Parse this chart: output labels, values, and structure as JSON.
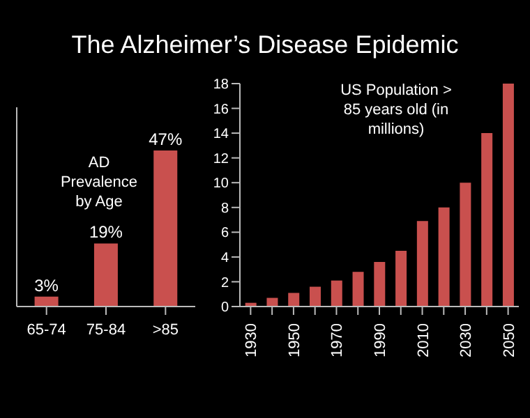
{
  "chart_data": [
    {
      "type": "bar",
      "title": "The Alzheimer’s Disease Epidemic",
      "annotations": [
        "AD Prevalence by Age"
      ],
      "categories": [
        "65-74",
        "75-84",
        ">85"
      ],
      "series": [
        {
          "color": "#c9504e",
          "values": [
            3,
            19,
            47
          ],
          "value_labels": [
            "3%",
            "19%",
            "47%"
          ]
        }
      ],
      "tick_labels": "x"
    },
    {
      "type": "bar",
      "annotations": [
        "US Population > 85 years old (in millions)"
      ],
      "categories": [
        "1930",
        null,
        "1950",
        null,
        "1970",
        null,
        "1990",
        null,
        "2010",
        null,
        "2030",
        null,
        "2050"
      ],
      "series": [
        {
          "color": "#c9504e",
          "values": [
            0.3,
            0.7,
            1.1,
            1.6,
            2.1,
            2.8,
            3.6,
            4.5,
            6.9,
            8,
            10,
            14,
            18
          ]
        }
      ],
      "ylim": [
        0,
        18
      ],
      "yticks": [
        0,
        2,
        4,
        6,
        8,
        10,
        12,
        14,
        16,
        18
      ]
    }
  ]
}
